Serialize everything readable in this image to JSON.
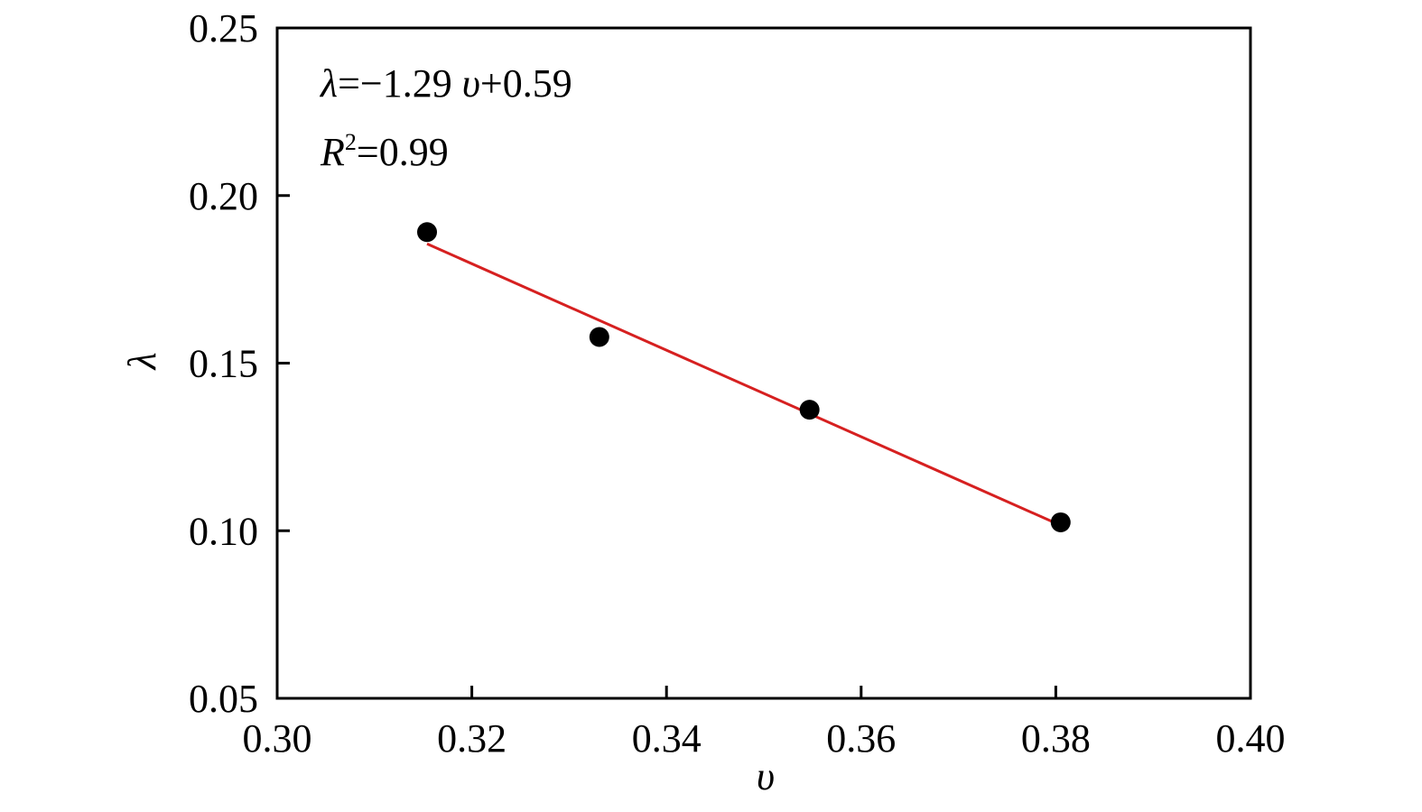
{
  "chart_data": {
    "type": "scatter",
    "xlabel": "υ",
    "ylabel": "λ",
    "xlim": [
      0.3,
      0.4
    ],
    "ylim": [
      0.05,
      0.25
    ],
    "x_ticks": [
      "0.30",
      "0.32",
      "0.34",
      "0.36",
      "0.38",
      "0.40"
    ],
    "y_ticks": [
      "0.05",
      "0.10",
      "0.15",
      "0.20",
      "0.25"
    ],
    "grid": false,
    "series": [
      {
        "kind": "points",
        "color": "#000000",
        "x": [
          0.3154,
          0.3331,
          0.3547,
          0.3805
        ],
        "y": [
          0.1891,
          0.1578,
          0.1361,
          0.1025
        ]
      },
      {
        "kind": "fit_line",
        "color": "#d62020",
        "x": [
          0.3154,
          0.3805
        ],
        "y": [
          0.1856,
          0.1016
        ]
      }
    ],
    "annotations": {
      "equation": {
        "lambda": "λ",
        "rest": "=−1.29 ",
        "upsilon": "υ",
        "tail": "+0.59"
      },
      "r2": {
        "r": "R",
        "sup": "2",
        "rest": "=0.99"
      }
    }
  }
}
